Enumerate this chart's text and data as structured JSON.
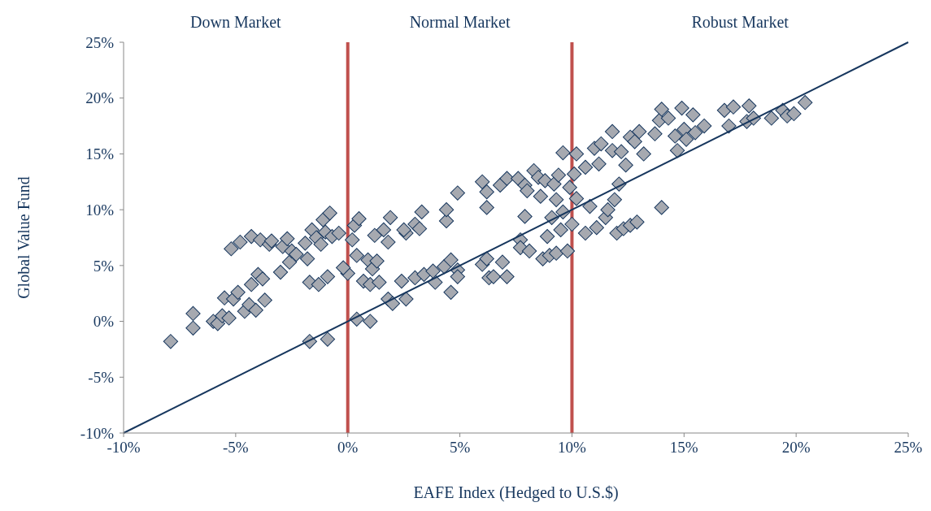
{
  "chart_data": {
    "type": "scatter",
    "xlabel": "EAFE Index (Hedged to U.S.$)",
    "ylabel": "Global Value Fund",
    "annotations": [
      "Down Market",
      "Normal Market",
      "Robust Market"
    ],
    "xlim": [
      -10,
      25
    ],
    "ylim": [
      -10,
      25
    ],
    "xticks": [
      {
        "value": -10,
        "label": "-10%"
      },
      {
        "value": -5,
        "label": "-5%"
      },
      {
        "value": 0,
        "label": "0%"
      },
      {
        "value": 5,
        "label": "5%"
      },
      {
        "value": 10,
        "label": "10%"
      },
      {
        "value": 15,
        "label": "15%"
      },
      {
        "value": 20,
        "label": "20%"
      },
      {
        "value": 25,
        "label": "25%"
      }
    ],
    "yticks": [
      {
        "value": -10,
        "label": "-10%"
      },
      {
        "value": -5,
        "label": "-5%"
      },
      {
        "value": 0,
        "label": "0%"
      },
      {
        "value": 5,
        "label": "5%"
      },
      {
        "value": 10,
        "label": "10%"
      },
      {
        "value": 15,
        "label": "15%"
      },
      {
        "value": 20,
        "label": "20%"
      },
      {
        "value": 25,
        "label": "25%"
      }
    ],
    "grid": false,
    "ref_lines": [
      {
        "axis": "x",
        "value": 0,
        "color": "#c0504d"
      },
      {
        "axis": "x",
        "value": 10,
        "color": "#c0504d"
      }
    ],
    "series": [
      {
        "marker": "diamond",
        "color": "#a6a9b0",
        "x": [
          -7.9,
          -6.9,
          -6.9,
          -6.0,
          -5.8,
          -5.6,
          -5.5,
          -5.3,
          -5.1,
          -5.2,
          -4.8,
          -4.9,
          -4.6,
          -4.4,
          -4.3,
          -4.1,
          -4.0,
          -4.3,
          -3.9,
          -3.8,
          -3.7,
          -3.5,
          -3.4,
          -3.0,
          -2.9,
          -2.7,
          -2.6,
          -2.5,
          -2.3,
          -1.9,
          -1.8,
          -1.6,
          -1.7,
          -1.3,
          -1.4,
          -1.2,
          -1.0,
          -1.1,
          -0.9,
          -0.8,
          -0.7,
          -0.4,
          -1.7,
          -0.9,
          0.0,
          -0.2,
          0.3,
          0.2,
          0.5,
          0.4,
          0.4,
          0.7,
          0.9,
          1.0,
          1.1,
          1.2,
          1.3,
          1.4,
          1.0,
          1.6,
          1.9,
          1.8,
          1.8,
          2.0,
          2.4,
          2.6,
          2.5,
          2.6,
          3.0,
          3.0,
          3.3,
          3.2,
          3.4,
          3.9,
          3.8,
          4.3,
          4.4,
          4.4,
          4.6,
          4.9,
          4.6,
          4.9,
          4.9,
          6.0,
          6.0,
          6.2,
          6.2,
          6.3,
          6.2,
          6.5,
          6.8,
          6.9,
          7.1,
          7.1,
          7.6,
          7.7,
          7.7,
          7.9,
          7.9,
          8.0,
          8.1,
          8.3,
          8.5,
          8.6,
          8.7,
          8.8,
          8.9,
          9.0,
          9.1,
          9.2,
          9.3,
          9.3,
          9.4,
          9.5,
          9.6,
          9.6,
          9.8,
          9.9,
          10.0,
          10.1,
          10.2,
          10.2,
          10.6,
          10.6,
          10.8,
          11.0,
          11.1,
          11.2,
          11.3,
          11.5,
          11.6,
          11.8,
          11.8,
          11.9,
          12.0,
          12.1,
          12.2,
          12.3,
          12.4,
          12.6,
          12.6,
          12.8,
          12.9,
          13.0,
          13.2,
          13.7,
          13.9,
          14.0,
          14.0,
          14.3,
          14.6,
          14.7,
          14.9,
          15.0,
          15.1,
          15.4,
          15.5,
          15.9,
          16.8,
          17.0,
          17.2,
          17.8,
          17.9,
          18.1,
          18.9,
          19.4,
          19.6,
          19.9,
          20.4
        ],
        "values": [
          -1.8,
          0.7,
          -0.6,
          0,
          -0.2,
          0.5,
          2.1,
          0.3,
          2.0,
          6.5,
          7.1,
          2.6,
          0.9,
          1.5,
          3.3,
          1.0,
          4.2,
          7.6,
          7.3,
          3.8,
          1.9,
          6.9,
          7.2,
          4.4,
          6.7,
          7.4,
          5.3,
          6.3,
          6.0,
          7.0,
          5.6,
          8.2,
          3.5,
          3.3,
          7.5,
          6.9,
          8.0,
          9.1,
          4.0,
          9.7,
          7.6,
          7.9,
          -1.8,
          -1.6,
          4.3,
          4.8,
          8.6,
          7.3,
          9.2,
          5.9,
          0.2,
          3.6,
          5.5,
          3.3,
          4.7,
          7.7,
          5.4,
          3.5,
          0.0,
          8.2,
          9.3,
          7.1,
          2.0,
          1.6,
          3.6,
          7.9,
          8.2,
          2.0,
          3.9,
          8.7,
          9.8,
          8.3,
          4.2,
          3.5,
          4.5,
          4.9,
          9.0,
          10.0,
          5.5,
          11.5,
          2.6,
          4.6,
          4.0,
          5.1,
          12.5,
          11.6,
          10.2,
          3.9,
          5.6,
          4.0,
          12.2,
          5.3,
          12.8,
          4.0,
          12.8,
          7.3,
          6.6,
          9.4,
          12.2,
          11.7,
          6.3,
          13.5,
          12.9,
          11.2,
          5.6,
          12.6,
          7.6,
          5.9,
          9.3,
          12.3,
          10.9,
          6.1,
          13.1,
          8.2,
          15.1,
          9.8,
          6.3,
          12.0,
          8.7,
          13.2,
          11.0,
          15.0,
          7.9,
          13.8,
          10.3,
          15.5,
          8.4,
          14.1,
          15.9,
          9.3,
          10.0,
          17.0,
          15.3,
          10.9,
          7.9,
          12.3,
          15.2,
          8.3,
          14.0,
          16.5,
          8.6,
          16.1,
          8.9,
          17.0,
          15.0,
          16.8,
          18.0,
          19.0,
          10.2,
          18.2,
          16.6,
          15.3,
          19.1,
          17.2,
          16.3,
          18.5,
          16.9,
          17.5,
          18.9,
          17.5,
          19.2,
          17.9,
          19.3,
          18.2,
          18.2,
          18.9,
          18.4,
          18.6,
          19.6
        ]
      },
      {
        "type": "line",
        "color": "#17375e",
        "x": [
          -10,
          25
        ],
        "values": [
          -10,
          25
        ]
      }
    ]
  }
}
